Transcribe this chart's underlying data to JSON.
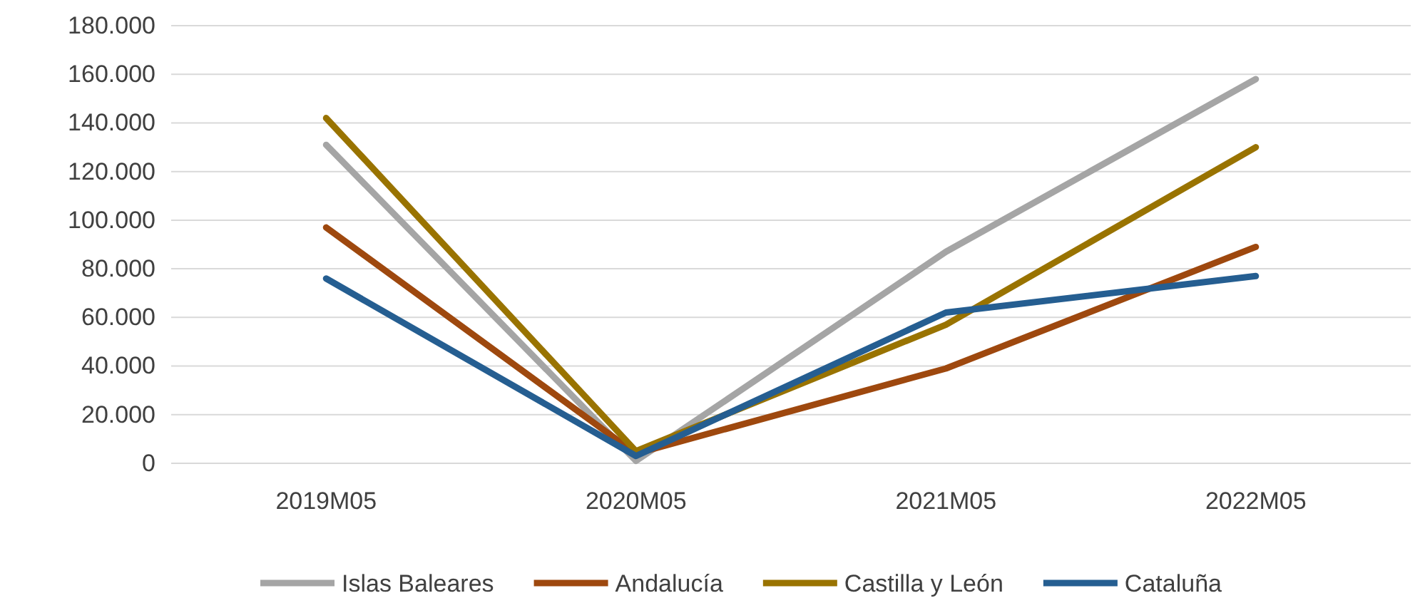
{
  "chart_data": {
    "type": "line",
    "categories": [
      "2019M05",
      "2020M05",
      "2021M05",
      "2022M05"
    ],
    "series": [
      {
        "name": "Islas Baleares",
        "color": "#a5a5a5",
        "values": [
          131000,
          1000,
          87000,
          158000
        ]
      },
      {
        "name": "Andalucía",
        "color": "#9e480e",
        "values": [
          97000,
          4000,
          39000,
          89000
        ]
      },
      {
        "name": "Castilla y León",
        "color": "#997300",
        "values": [
          142000,
          5000,
          57000,
          130000
        ]
      },
      {
        "name": "Cataluña",
        "color": "#255e91",
        "values": [
          76000,
          3000,
          62000,
          77000
        ]
      }
    ],
    "ylim": [
      0,
      180000
    ],
    "yticks": [
      {
        "value": 0,
        "label": "0"
      },
      {
        "value": 20000,
        "label": "20.000"
      },
      {
        "value": 40000,
        "label": "40.000"
      },
      {
        "value": 60000,
        "label": "60.000"
      },
      {
        "value": 80000,
        "label": "80.000"
      },
      {
        "value": 100000,
        "label": "100.000"
      },
      {
        "value": 120000,
        "label": "120.000"
      },
      {
        "value": 140000,
        "label": "140.000"
      },
      {
        "value": 160000,
        "label": "160.000"
      },
      {
        "value": 180000,
        "label": "180.000"
      }
    ],
    "grid": "y",
    "legend": "bottom",
    "marker": "none",
    "line_style": "solid"
  }
}
